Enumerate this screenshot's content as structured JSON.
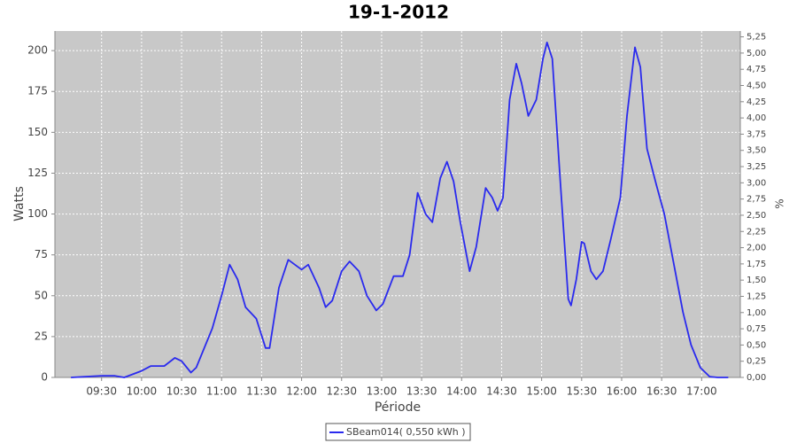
{
  "chart_data": {
    "type": "line",
    "title": "19-1-2012",
    "x_label": "Période",
    "y_label": "Watts",
    "y2_label": "%",
    "xlim": [
      "08:55",
      "17:29"
    ],
    "xticks": [
      "09:30",
      "10:00",
      "10:30",
      "11:00",
      "11:30",
      "12:00",
      "12:30",
      "13:00",
      "13:30",
      "14:00",
      "14:30",
      "15:00",
      "15:30",
      "16:00",
      "16:30",
      "17:00"
    ],
    "ylim": [
      0,
      212
    ],
    "yticks": [
      0,
      25,
      50,
      75,
      100,
      125,
      150,
      175,
      200
    ],
    "y2lim": [
      0,
      5.34
    ],
    "y2ticks": [
      {
        "value": 0,
        "label": "0,00"
      },
      {
        "value": 0.25,
        "label": "0,25"
      },
      {
        "value": 0.5,
        "label": "0,50"
      },
      {
        "value": 0.75,
        "label": "0,75"
      },
      {
        "value": 1,
        "label": "1,00"
      },
      {
        "value": 1.25,
        "label": "1,25"
      },
      {
        "value": 1.5,
        "label": "1,50"
      },
      {
        "value": 1.75,
        "label": "1,75"
      },
      {
        "value": 2,
        "label": "2,00"
      },
      {
        "value": 2.25,
        "label": "2,25"
      },
      {
        "value": 2.5,
        "label": "2,50"
      },
      {
        "value": 2.75,
        "label": "2,75"
      },
      {
        "value": 3,
        "label": "3,00"
      },
      {
        "value": 3.25,
        "label": "3,25"
      },
      {
        "value": 3.5,
        "label": "3,50"
      },
      {
        "value": 3.75,
        "label": "3,75"
      },
      {
        "value": 4,
        "label": "4,00"
      },
      {
        "value": 4.25,
        "label": "4,25"
      },
      {
        "value": 4.5,
        "label": "4,50"
      },
      {
        "value": 4.75,
        "label": "4,75"
      },
      {
        "value": 5,
        "label": "5,00"
      },
      {
        "value": 5.25,
        "label": "5,25"
      }
    ],
    "grid": true,
    "x": [
      "09:07",
      "09:30",
      "09:40",
      "09:47",
      "10:00",
      "10:07",
      "10:17",
      "10:25",
      "10:30",
      "10:37",
      "10:41",
      "10:53",
      "11:00",
      "11:06",
      "11:12",
      "11:18",
      "11:26",
      "11:33",
      "11:36",
      "11:43",
      "11:50",
      "12:00",
      "12:05",
      "12:13",
      "12:18",
      "12:23",
      "12:30",
      "12:36",
      "12:43",
      "12:49",
      "12:56",
      "13:01",
      "13:09",
      "13:16",
      "13:21",
      "13:27",
      "13:33",
      "13:38",
      "13:44",
      "13:49",
      "13:54",
      "13:59",
      "14:06",
      "14:11",
      "14:18",
      "14:23",
      "14:27",
      "14:31",
      "14:36",
      "14:41",
      "14:45",
      "14:50",
      "14:56",
      "15:01",
      "15:04",
      "15:08",
      "15:14",
      "15:20",
      "15:22",
      "15:26",
      "15:30",
      "15:32",
      "15:37",
      "15:41",
      "15:46",
      "15:52",
      "15:59",
      "16:04",
      "16:10",
      "16:14",
      "16:19",
      "16:26",
      "16:32",
      "16:39",
      "16:46",
      "16:52",
      "16:59",
      "17:06",
      "17:12",
      "17:20"
    ],
    "series": [
      {
        "name": "SBeam014( 0,550 kWh )",
        "color": "#2a2aee",
        "values": [
          0,
          1,
          1,
          0,
          4,
          7,
          7,
          12,
          10,
          3,
          6,
          30,
          50,
          69,
          60,
          43,
          36,
          18,
          18,
          55,
          72,
          66,
          69,
          55,
          43,
          47,
          65,
          71,
          65,
          50,
          41,
          45,
          62,
          62,
          75,
          113,
          100,
          95,
          122,
          132,
          120,
          95,
          65,
          80,
          116,
          110,
          102,
          110,
          170,
          192,
          180,
          160,
          170,
          195,
          205,
          195,
          120,
          48,
          44,
          60,
          83,
          82,
          65,
          60,
          65,
          85,
          110,
          160,
          202,
          190,
          140,
          118,
          100,
          70,
          40,
          20,
          6,
          0.5,
          0,
          0
        ]
      }
    ]
  }
}
